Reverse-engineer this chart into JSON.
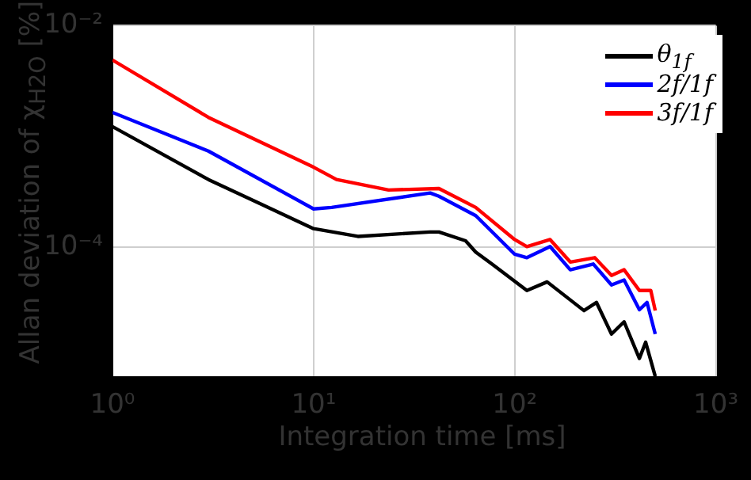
{
  "chart_data": {
    "type": "line",
    "xlabel": "Integration time [ms]",
    "ylabel": "Allan deviation of χ$_{H2O}$ [%]",
    "log": "xy",
    "grid": true,
    "legend": "top right",
    "marker": "none",
    "line_style": "solid",
    "xlim": [
      1,
      1000
    ],
    "xticks": [
      {
        "value": 1,
        "label": "10⁰"
      },
      {
        "value": 10,
        "label": "10¹"
      },
      {
        "value": 100,
        "label": "10²"
      },
      {
        "value": 1000,
        "label": "10³"
      }
    ],
    "ylim": [
      6.8e-06,
      0.01
    ],
    "yticks": [
      {
        "value": 0.01,
        "label": "10⁻²"
      },
      {
        "value": 0.0001,
        "label": "10⁻⁴"
      }
    ],
    "series": [
      {
        "name": "θ$_{1f}$",
        "color": "#000000",
        "x": [
          1,
          3,
          10,
          16.6,
          38,
          42,
          57,
          64,
          77,
          115,
          145,
          221,
          255,
          303,
          350,
          417,
          448,
          500
        ],
        "values": [
          0.00123,
          0.00041,
          0.000148,
          0.000126,
          0.000138,
          0.000138,
          0.000115,
          9.1e-05,
          7.1e-05,
          4.1e-05,
          4.9e-05,
          2.7e-05,
          3.2e-05,
          1.66e-05,
          2.14e-05,
          1e-05,
          1.4e-05,
          6.9e-06
        ]
      },
      {
        "name": "2f/1f",
        "color": "#0000ff",
        "x": [
          1,
          3,
          10,
          12.3,
          38,
          42,
          64,
          100,
          115,
          150,
          189,
          246,
          303,
          350,
          417,
          455,
          500
        ],
        "values": [
          0.00165,
          0.00074,
          0.000223,
          0.00023,
          0.00031,
          0.00029,
          0.000194,
          8.7e-05,
          8.1e-05,
          0.000102,
          6.3e-05,
          7.1e-05,
          4.6e-05,
          5.1e-05,
          2.75e-05,
          3.2e-05,
          1.66e-05
        ]
      },
      {
        "name": "3f/1f",
        "color": "#ff0000",
        "x": [
          1,
          3,
          10,
          13,
          23.6,
          42,
          64,
          100,
          115,
          150,
          189,
          250,
          303,
          350,
          417,
          475,
          500
        ],
        "values": [
          0.0049,
          0.00149,
          0.00053,
          0.00041,
          0.00033,
          0.00034,
          0.00023,
          0.000118,
          0.000102,
          0.000118,
          7.4e-05,
          8.1e-05,
          5.6e-05,
          6.3e-05,
          4.1e-05,
          4.1e-05,
          2.7e-05
        ]
      }
    ]
  }
}
